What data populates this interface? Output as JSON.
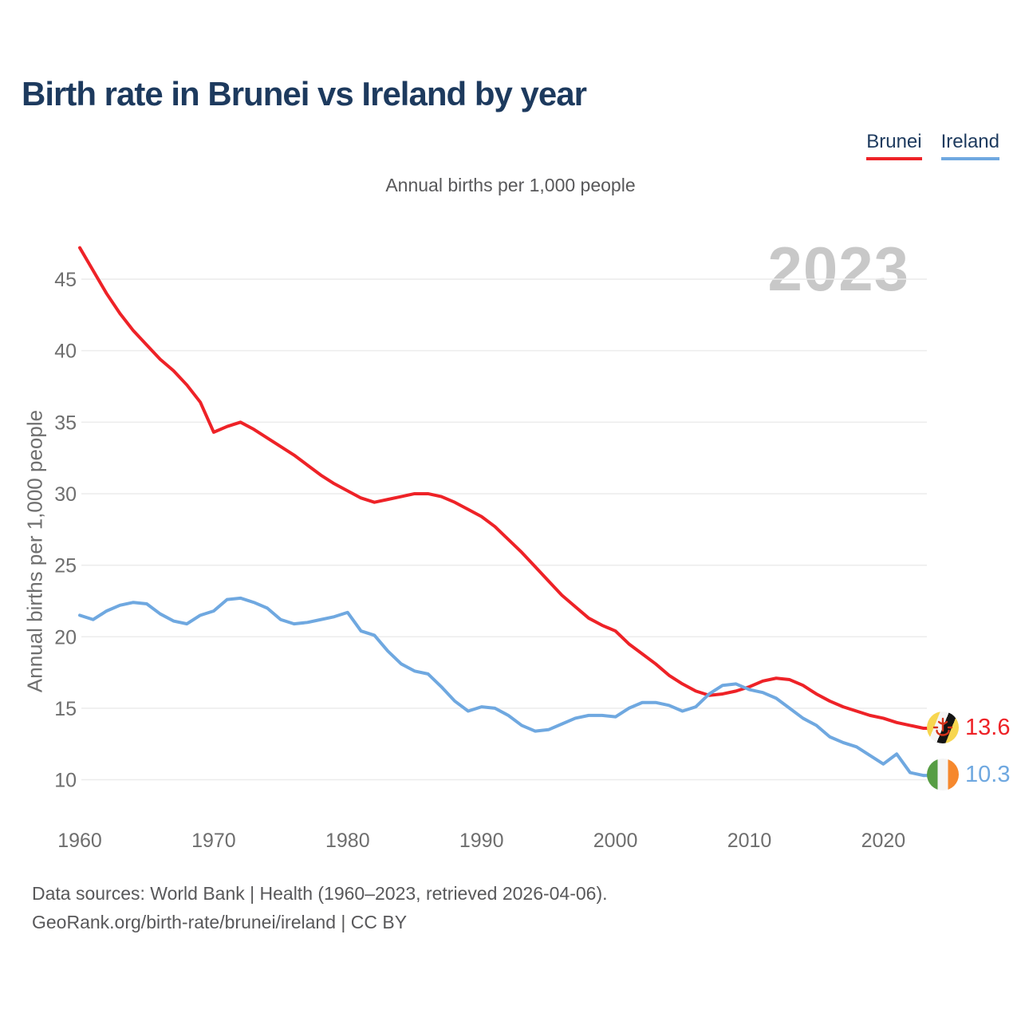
{
  "header": {
    "title": "Birth rate in Brunei vs Ireland by year"
  },
  "legend": [
    {
      "label": "Brunei",
      "color": "#ee2227"
    },
    {
      "label": "Ireland",
      "color": "#6fa8e0"
    }
  ],
  "subtitle": "Annual births per 1,000 people",
  "watermark": "2023",
  "end_labels": [
    {
      "series": "Brunei",
      "value": "13.6",
      "color": "#ee2227",
      "flag": "brunei-flag-icon"
    },
    {
      "series": "Ireland",
      "value": "10.3",
      "color": "#6fa8e0",
      "flag": "ireland-flag-icon"
    }
  ],
  "footer": {
    "line1": "Data sources: World Bank | Health (1960–2023, retrieved 2026-04-06).",
    "line2": "GeoRank.org/birth-rate/brunei/ireland | CC BY"
  },
  "chart_data": {
    "type": "line",
    "title": "Birth rate in Brunei vs Ireland by year",
    "subtitle": "Annual births per 1,000 people",
    "xlabel": "",
    "ylabel": "Annual births per 1,000 people",
    "x_ticks": [
      1960,
      1970,
      1980,
      1990,
      2000,
      2010,
      2020
    ],
    "y_ticks": [
      10,
      15,
      20,
      25,
      30,
      35,
      40,
      45
    ],
    "ylim": [
      8.5,
      48
    ],
    "grid": true,
    "legend_position": "top-right",
    "years": [
      1960,
      1961,
      1962,
      1963,
      1964,
      1965,
      1966,
      1967,
      1968,
      1969,
      1970,
      1971,
      1972,
      1973,
      1974,
      1975,
      1976,
      1977,
      1978,
      1979,
      1980,
      1981,
      1982,
      1983,
      1984,
      1985,
      1986,
      1987,
      1988,
      1989,
      1990,
      1991,
      1992,
      1993,
      1994,
      1995,
      1996,
      1997,
      1998,
      1999,
      2000,
      2001,
      2002,
      2003,
      2004,
      2005,
      2006,
      2007,
      2008,
      2009,
      2010,
      2011,
      2012,
      2013,
      2014,
      2015,
      2016,
      2017,
      2018,
      2019,
      2020,
      2021,
      2022,
      2023
    ],
    "series": [
      {
        "name": "Brunei",
        "color": "#ee2227",
        "values": [
          47.2,
          45.6,
          44.0,
          42.6,
          41.4,
          40.4,
          39.4,
          38.6,
          37.6,
          36.4,
          34.3,
          34.7,
          35.0,
          34.5,
          33.9,
          33.3,
          32.7,
          32.0,
          31.3,
          30.7,
          30.2,
          29.7,
          29.4,
          29.6,
          29.8,
          30.0,
          30.0,
          29.8,
          29.4,
          28.9,
          28.4,
          27.7,
          26.8,
          25.9,
          24.9,
          23.9,
          22.9,
          22.1,
          21.3,
          20.8,
          20.4,
          19.5,
          18.8,
          18.1,
          17.3,
          16.7,
          16.2,
          15.9,
          16.0,
          16.2,
          16.5,
          16.9,
          17.1,
          17.0,
          16.6,
          16.0,
          15.5,
          15.1,
          14.8,
          14.5,
          14.3,
          14.0,
          13.8,
          13.6
        ]
      },
      {
        "name": "Ireland",
        "color": "#6fa8e0",
        "values": [
          21.5,
          21.2,
          21.8,
          22.2,
          22.4,
          22.3,
          21.6,
          21.1,
          20.9,
          21.5,
          21.8,
          22.6,
          22.7,
          22.4,
          22.0,
          21.2,
          20.9,
          21.0,
          21.2,
          21.4,
          21.7,
          20.4,
          20.1,
          19.0,
          18.1,
          17.6,
          17.4,
          16.5,
          15.5,
          14.8,
          15.1,
          15.0,
          14.5,
          13.8,
          13.4,
          13.5,
          13.9,
          14.3,
          14.5,
          14.5,
          14.4,
          15.0,
          15.4,
          15.4,
          15.2,
          14.8,
          15.1,
          16.0,
          16.6,
          16.7,
          16.3,
          16.1,
          15.7,
          15.0,
          14.3,
          13.8,
          13.0,
          12.6,
          12.3,
          11.7,
          11.1,
          11.8,
          10.5,
          10.3
        ]
      }
    ]
  }
}
